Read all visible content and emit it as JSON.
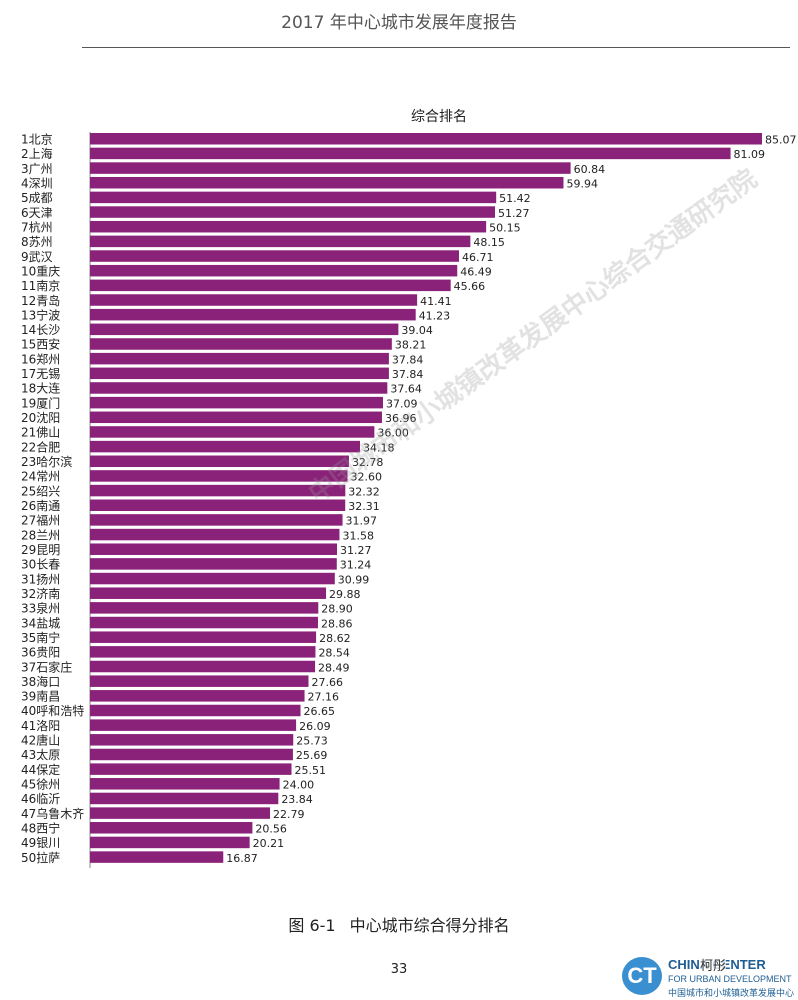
{
  "header": {
    "title": "2017 年中心城市发展年度报告"
  },
  "chart_data": {
    "type": "bar",
    "orientation": "horizontal",
    "title": "综合排名",
    "color": "#8b2279",
    "grid": false,
    "categories": [
      "1北京",
      "2上海",
      "3广州",
      "4深圳",
      "5成都",
      "6天津",
      "7杭州",
      "8苏州",
      "9武汉",
      "10重庆",
      "11南京",
      "12青岛",
      "13宁波",
      "14长沙",
      "15西安",
      "16郑州",
      "17无锡",
      "18大连",
      "19厦门",
      "20沈阳",
      "21佛山",
      "22合肥",
      "23哈尔滨",
      "24常州",
      "25绍兴",
      "26南通",
      "27福州",
      "28兰州",
      "29昆明",
      "30长春",
      "31扬州",
      "32济南",
      "33泉州",
      "34盐城",
      "35南宁",
      "36贵阳",
      "37石家庄",
      "38海口",
      "39南昌",
      "40呼和浩特",
      "41洛阳",
      "42唐山",
      "43太原",
      "44保定",
      "45徐州",
      "46临沂",
      "47乌鲁木齐",
      "48西宁",
      "49银川",
      "50拉萨"
    ],
    "values": [
      85.07,
      81.09,
      60.84,
      59.94,
      51.42,
      51.27,
      50.15,
      48.15,
      46.71,
      46.49,
      45.66,
      41.41,
      41.23,
      39.04,
      38.21,
      37.84,
      37.84,
      37.64,
      37.09,
      36.96,
      36.0,
      34.18,
      32.78,
      32.6,
      32.32,
      32.31,
      31.97,
      31.58,
      31.27,
      31.24,
      30.99,
      29.88,
      28.9,
      28.86,
      28.62,
      28.54,
      28.49,
      27.66,
      27.16,
      26.65,
      26.09,
      25.73,
      25.69,
      25.51,
      24.0,
      23.84,
      22.79,
      20.56,
      20.21,
      16.87
    ],
    "labels": [
      "85.07",
      "81.09",
      "60.84",
      "59.94",
      "51.42",
      "51.27",
      "50.15",
      "48.15",
      "46.71",
      "46.49",
      "45.66",
      "41.41",
      "41.23",
      "39.04",
      "38.21",
      "37.84",
      "37.84",
      "37.64",
      "37.09",
      "36.96",
      "36.00",
      "34.18",
      "32.78",
      "32.60",
      "32.32",
      "32.31",
      "31.97",
      "31.58",
      "31.27",
      "31.24",
      "30.99",
      "29.88",
      "28.90",
      "28.86",
      "28.62",
      "28.54",
      "28.49",
      "27.66",
      "27.16",
      "26.65",
      "26.09",
      "25.73",
      "25.69",
      "25.51",
      "24.00",
      "23.84",
      "22.79",
      "20.56",
      "20.21",
      "16.87"
    ]
  },
  "watermark": "中国城市和小城镇改革发展中心综合交通研究院",
  "caption": {
    "figure_no": "图 6-1",
    "text": "中心城市综合得分排名"
  },
  "footer": {
    "page_number": "33",
    "logo_mark": "CT",
    "logo_title": "CHINA CENTER",
    "logo_subtitle": "FOR URBAN DEVELOPMENT",
    "logo_cn": "中国城市和小城镇改革发展中心",
    "wechat_handle": "柯彤"
  }
}
